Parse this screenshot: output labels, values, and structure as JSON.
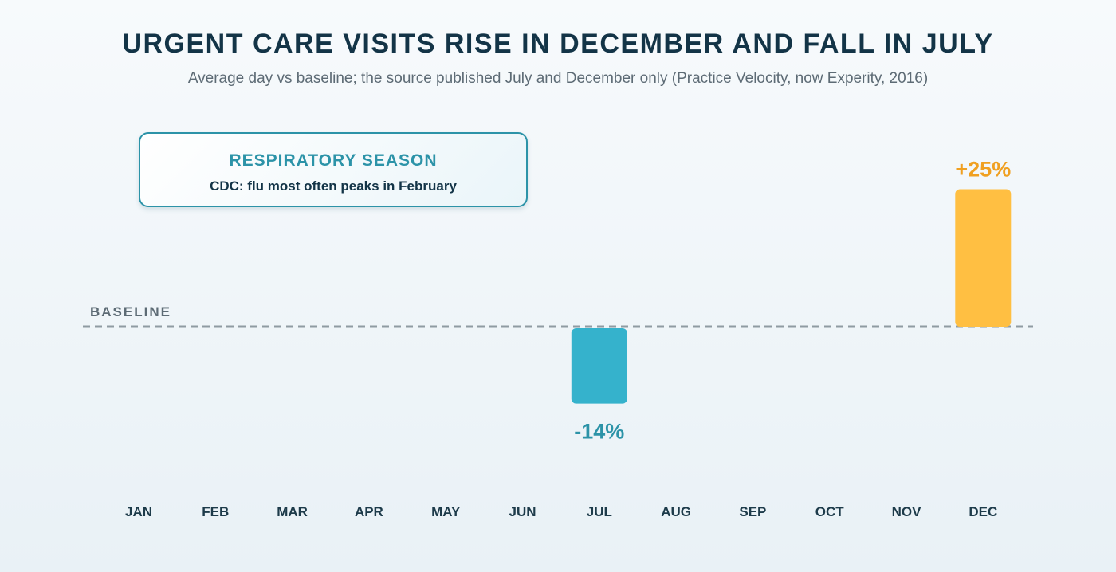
{
  "header": {
    "title": "URGENT CARE VISITS RISE IN DECEMBER AND FALL IN JULY",
    "subtitle": "Average day vs baseline; the source published July and December only (Practice Velocity, now Experity, 2016)"
  },
  "callout": {
    "title": "RESPIRATORY SEASON",
    "text": "CDC: flu most often peaks in February"
  },
  "chart_data": {
    "type": "bar",
    "categories": [
      "JAN",
      "FEB",
      "MAR",
      "APR",
      "MAY",
      "JUN",
      "JUL",
      "AUG",
      "SEP",
      "OCT",
      "NOV",
      "DEC"
    ],
    "values": [
      null,
      null,
      null,
      null,
      null,
      null,
      -14,
      null,
      null,
      null,
      null,
      25
    ],
    "data_labels": {
      "JUL": "-14%",
      "DEC": "+25%"
    },
    "baseline_label": "BASELINE",
    "baseline_value": 0,
    "ylim": [
      -25,
      25
    ],
    "colors": {
      "negative": "#35b2cc",
      "positive": "#ffbf42",
      "negative_label": "#2c93a8",
      "positive_label": "#f0a021",
      "baseline": "#8f9ba2",
      "tick": "#1d3b4a"
    },
    "grid": false,
    "legend": "none"
  }
}
